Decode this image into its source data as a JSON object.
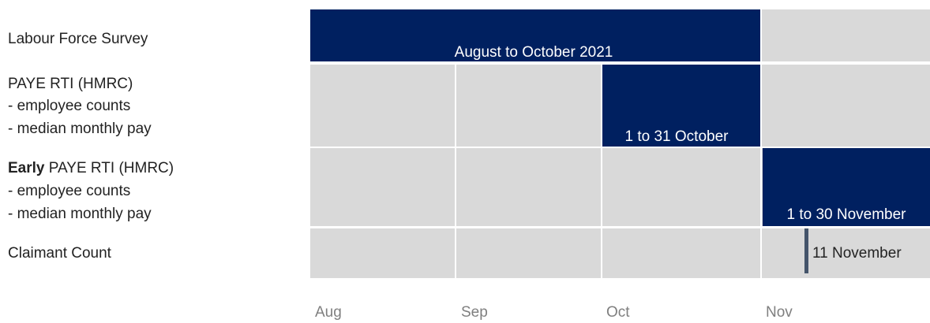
{
  "rows": [
    {
      "label": [
        "Labour Force Survey"
      ]
    },
    {
      "label": [
        "PAYE RTI (HMRC)",
        "- employee counts",
        "- median monthly pay"
      ]
    },
    {
      "label_emphasis": "Early",
      "label": [
        "PAYE RTI (HMRC)",
        "- employee counts",
        "- median monthly pay"
      ]
    },
    {
      "label": [
        "Claimant Count"
      ]
    }
  ],
  "bars": [
    "August to October 2021",
    "1 to 31 October",
    "1 to 30 November",
    "11 November"
  ],
  "months": [
    "Aug",
    "Sep",
    "Oct",
    "Nov"
  ]
}
